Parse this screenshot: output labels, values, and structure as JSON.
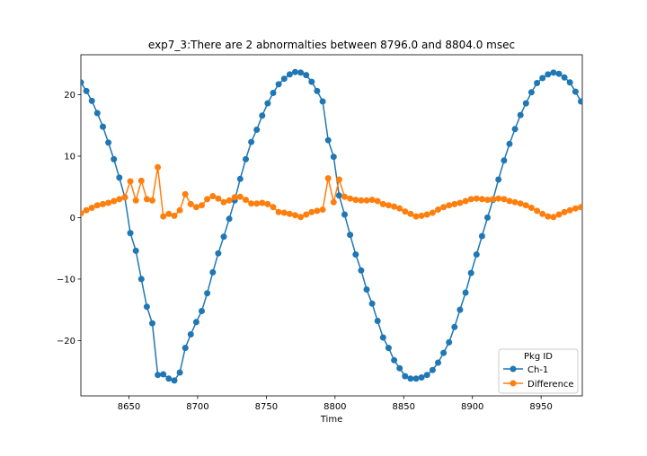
{
  "chart_data": {
    "type": "line",
    "title": "exp7_3:There are 2 abnormalties between 8796.0 and 8804.0 msec",
    "xlabel": "Time",
    "ylabel": "",
    "xlim": [
      8615,
      8980
    ],
    "ylim": [
      -29,
      26.5
    ],
    "xticks": [
      8650,
      8700,
      8750,
      8800,
      8850,
      8900,
      8950
    ],
    "xtick_labels": [
      "8650",
      "8700",
      "8750",
      "8800",
      "8850",
      "8900",
      "8950"
    ],
    "yticks": [
      -20,
      -10,
      0,
      10,
      20
    ],
    "ytick_labels": [
      "−20",
      "−10",
      "0",
      "10",
      "20"
    ],
    "grid": false,
    "legend": {
      "title": "Pkg ID",
      "position": "lower-right"
    },
    "series": [
      {
        "name": "Ch-1",
        "color": "#1f77b4",
        "marker": "circle",
        "x": [
          8615,
          8619,
          8623,
          8627,
          8631,
          8635,
          8639,
          8643,
          8647,
          8651,
          8655,
          8659,
          8663,
          8667,
          8671,
          8675,
          8679,
          8683,
          8687,
          8691,
          8695,
          8699,
          8703,
          8707,
          8711,
          8715,
          8719,
          8723,
          8727,
          8731,
          8735,
          8739,
          8743,
          8747,
          8751,
          8755,
          8759,
          8763,
          8767,
          8771,
          8775,
          8779,
          8783,
          8787,
          8791,
          8795,
          8799,
          8803,
          8807,
          8811,
          8815,
          8819,
          8823,
          8827,
          8831,
          8835,
          8839,
          8843,
          8847,
          8851,
          8855,
          8859,
          8863,
          8867,
          8871,
          8875,
          8879,
          8883,
          8887,
          8891,
          8895,
          8899,
          8903,
          8907,
          8911,
          8915,
          8919,
          8923,
          8927,
          8931,
          8935,
          8939,
          8943,
          8947,
          8951,
          8955,
          8959,
          8963,
          8967,
          8971,
          8975,
          8979
        ],
        "y": [
          22.0,
          20.6,
          19.0,
          17.0,
          14.8,
          12.2,
          9.5,
          6.5,
          3.3,
          -2.5,
          -5.4,
          -10.0,
          -14.5,
          -17.2,
          -25.6,
          -25.5,
          -26.2,
          -26.5,
          -25.2,
          -21.2,
          -19.0,
          -17.0,
          -15.2,
          -12.3,
          -8.9,
          -5.8,
          -3.1,
          -0.2,
          2.8,
          6.3,
          9.5,
          12.3,
          14.3,
          16.6,
          18.6,
          20.3,
          21.7,
          22.6,
          23.3,
          23.7,
          23.6,
          23.2,
          22.1,
          20.6,
          18.9,
          12.6,
          9.9,
          3.6,
          0.5,
          -2.8,
          -6.0,
          -8.6,
          -11.7,
          -14.0,
          -16.8,
          -19.5,
          -21.2,
          -23.2,
          -24.5,
          -25.8,
          -26.2,
          -26.2,
          -26.0,
          -25.6,
          -24.8,
          -23.6,
          -22.0,
          -20.3,
          -17.8,
          -15.0,
          -12.2,
          -9.0,
          -6.0,
          -3.0,
          0.0,
          2.9,
          6.2,
          9.3,
          12.0,
          14.4,
          16.7,
          18.6,
          20.4,
          21.9,
          22.7,
          23.3,
          23.6,
          23.4,
          22.8,
          22.0,
          20.5,
          18.9
        ]
      },
      {
        "name": "Difference",
        "color": "#ff7f0e",
        "marker": "circle",
        "x": [
          8615,
          8619,
          8623,
          8627,
          8631,
          8635,
          8639,
          8643,
          8647,
          8651,
          8655,
          8659,
          8663,
          8667,
          8671,
          8675,
          8679,
          8683,
          8687,
          8691,
          8695,
          8699,
          8703,
          8707,
          8711,
          8715,
          8719,
          8723,
          8727,
          8731,
          8735,
          8739,
          8743,
          8747,
          8751,
          8755,
          8759,
          8763,
          8767,
          8771,
          8775,
          8779,
          8783,
          8787,
          8791,
          8795,
          8799,
          8803,
          8807,
          8811,
          8815,
          8819,
          8823,
          8827,
          8831,
          8835,
          8839,
          8843,
          8847,
          8851,
          8855,
          8859,
          8863,
          8867,
          8871,
          8875,
          8879,
          8883,
          8887,
          8891,
          8895,
          8899,
          8903,
          8907,
          8911,
          8915,
          8919,
          8923,
          8927,
          8931,
          8935,
          8939,
          8943,
          8947,
          8951,
          8955,
          8959,
          8963,
          8967,
          8971,
          8975,
          8979
        ],
        "y": [
          0.7,
          1.2,
          1.6,
          2.0,
          2.2,
          2.4,
          2.7,
          3.0,
          3.3,
          5.9,
          2.8,
          6.0,
          3.0,
          2.8,
          8.2,
          0.2,
          0.6,
          0.3,
          1.2,
          3.8,
          2.2,
          1.7,
          2.0,
          3.0,
          3.5,
          3.1,
          2.5,
          2.8,
          3.3,
          3.4,
          2.9,
          2.3,
          2.3,
          2.4,
          2.2,
          1.7,
          0.9,
          0.8,
          0.6,
          0.4,
          0.1,
          0.5,
          0.9,
          1.1,
          1.3,
          6.4,
          2.5,
          6.2,
          3.4,
          3.1,
          2.9,
          2.8,
          2.8,
          2.9,
          2.7,
          2.2,
          2.0,
          1.8,
          1.5,
          1.0,
          0.6,
          0.2,
          0.3,
          0.5,
          0.8,
          1.3,
          1.7,
          2.0,
          2.2,
          2.4,
          2.7,
          3.0,
          3.1,
          3.0,
          2.9,
          3.0,
          3.1,
          3.0,
          2.7,
          2.5,
          2.3,
          2.0,
          1.6,
          1.1,
          0.6,
          0.2,
          0.1,
          0.5,
          0.9,
          1.2,
          1.5,
          1.7
        ]
      }
    ]
  }
}
